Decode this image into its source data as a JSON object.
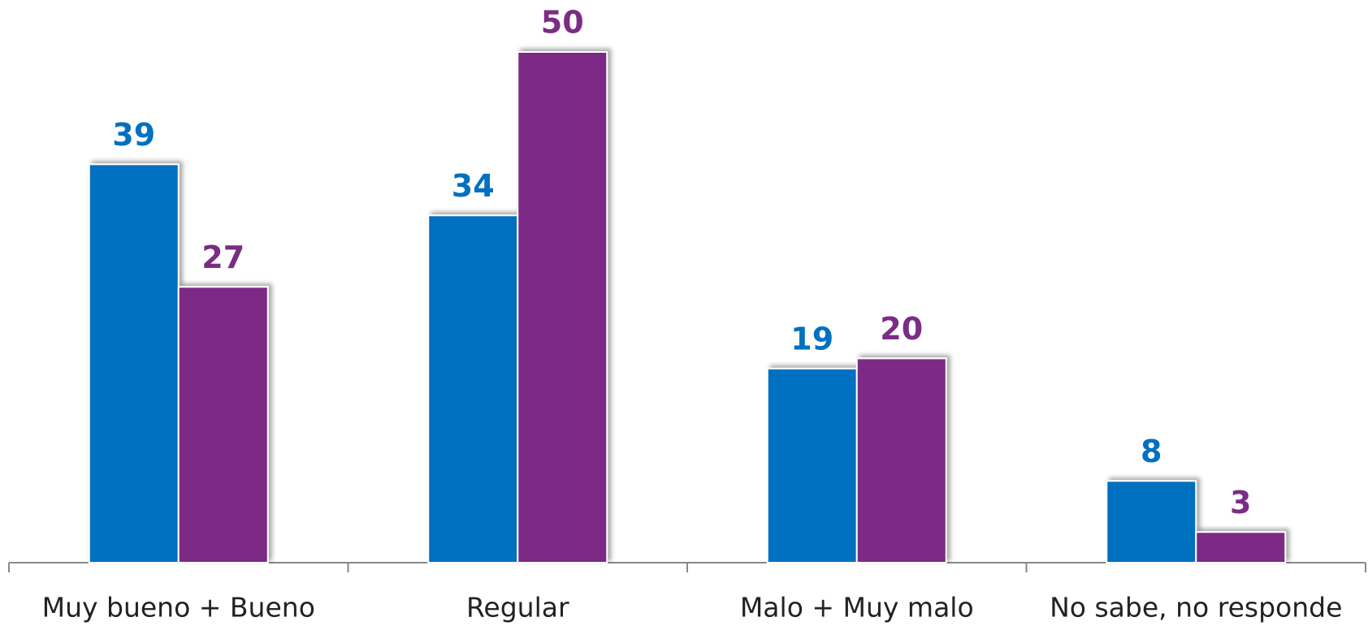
{
  "chart_data": {
    "type": "bar",
    "categories": [
      "Muy bueno + Bueno",
      "Regular",
      "Malo + Muy malo",
      "No sabe, no responde"
    ],
    "series": [
      {
        "color": "#0070c0",
        "values": [
          39,
          34,
          19,
          8
        ]
      },
      {
        "color": "#7b2c85",
        "values": [
          27,
          50,
          20,
          3
        ]
      }
    ]
  }
}
